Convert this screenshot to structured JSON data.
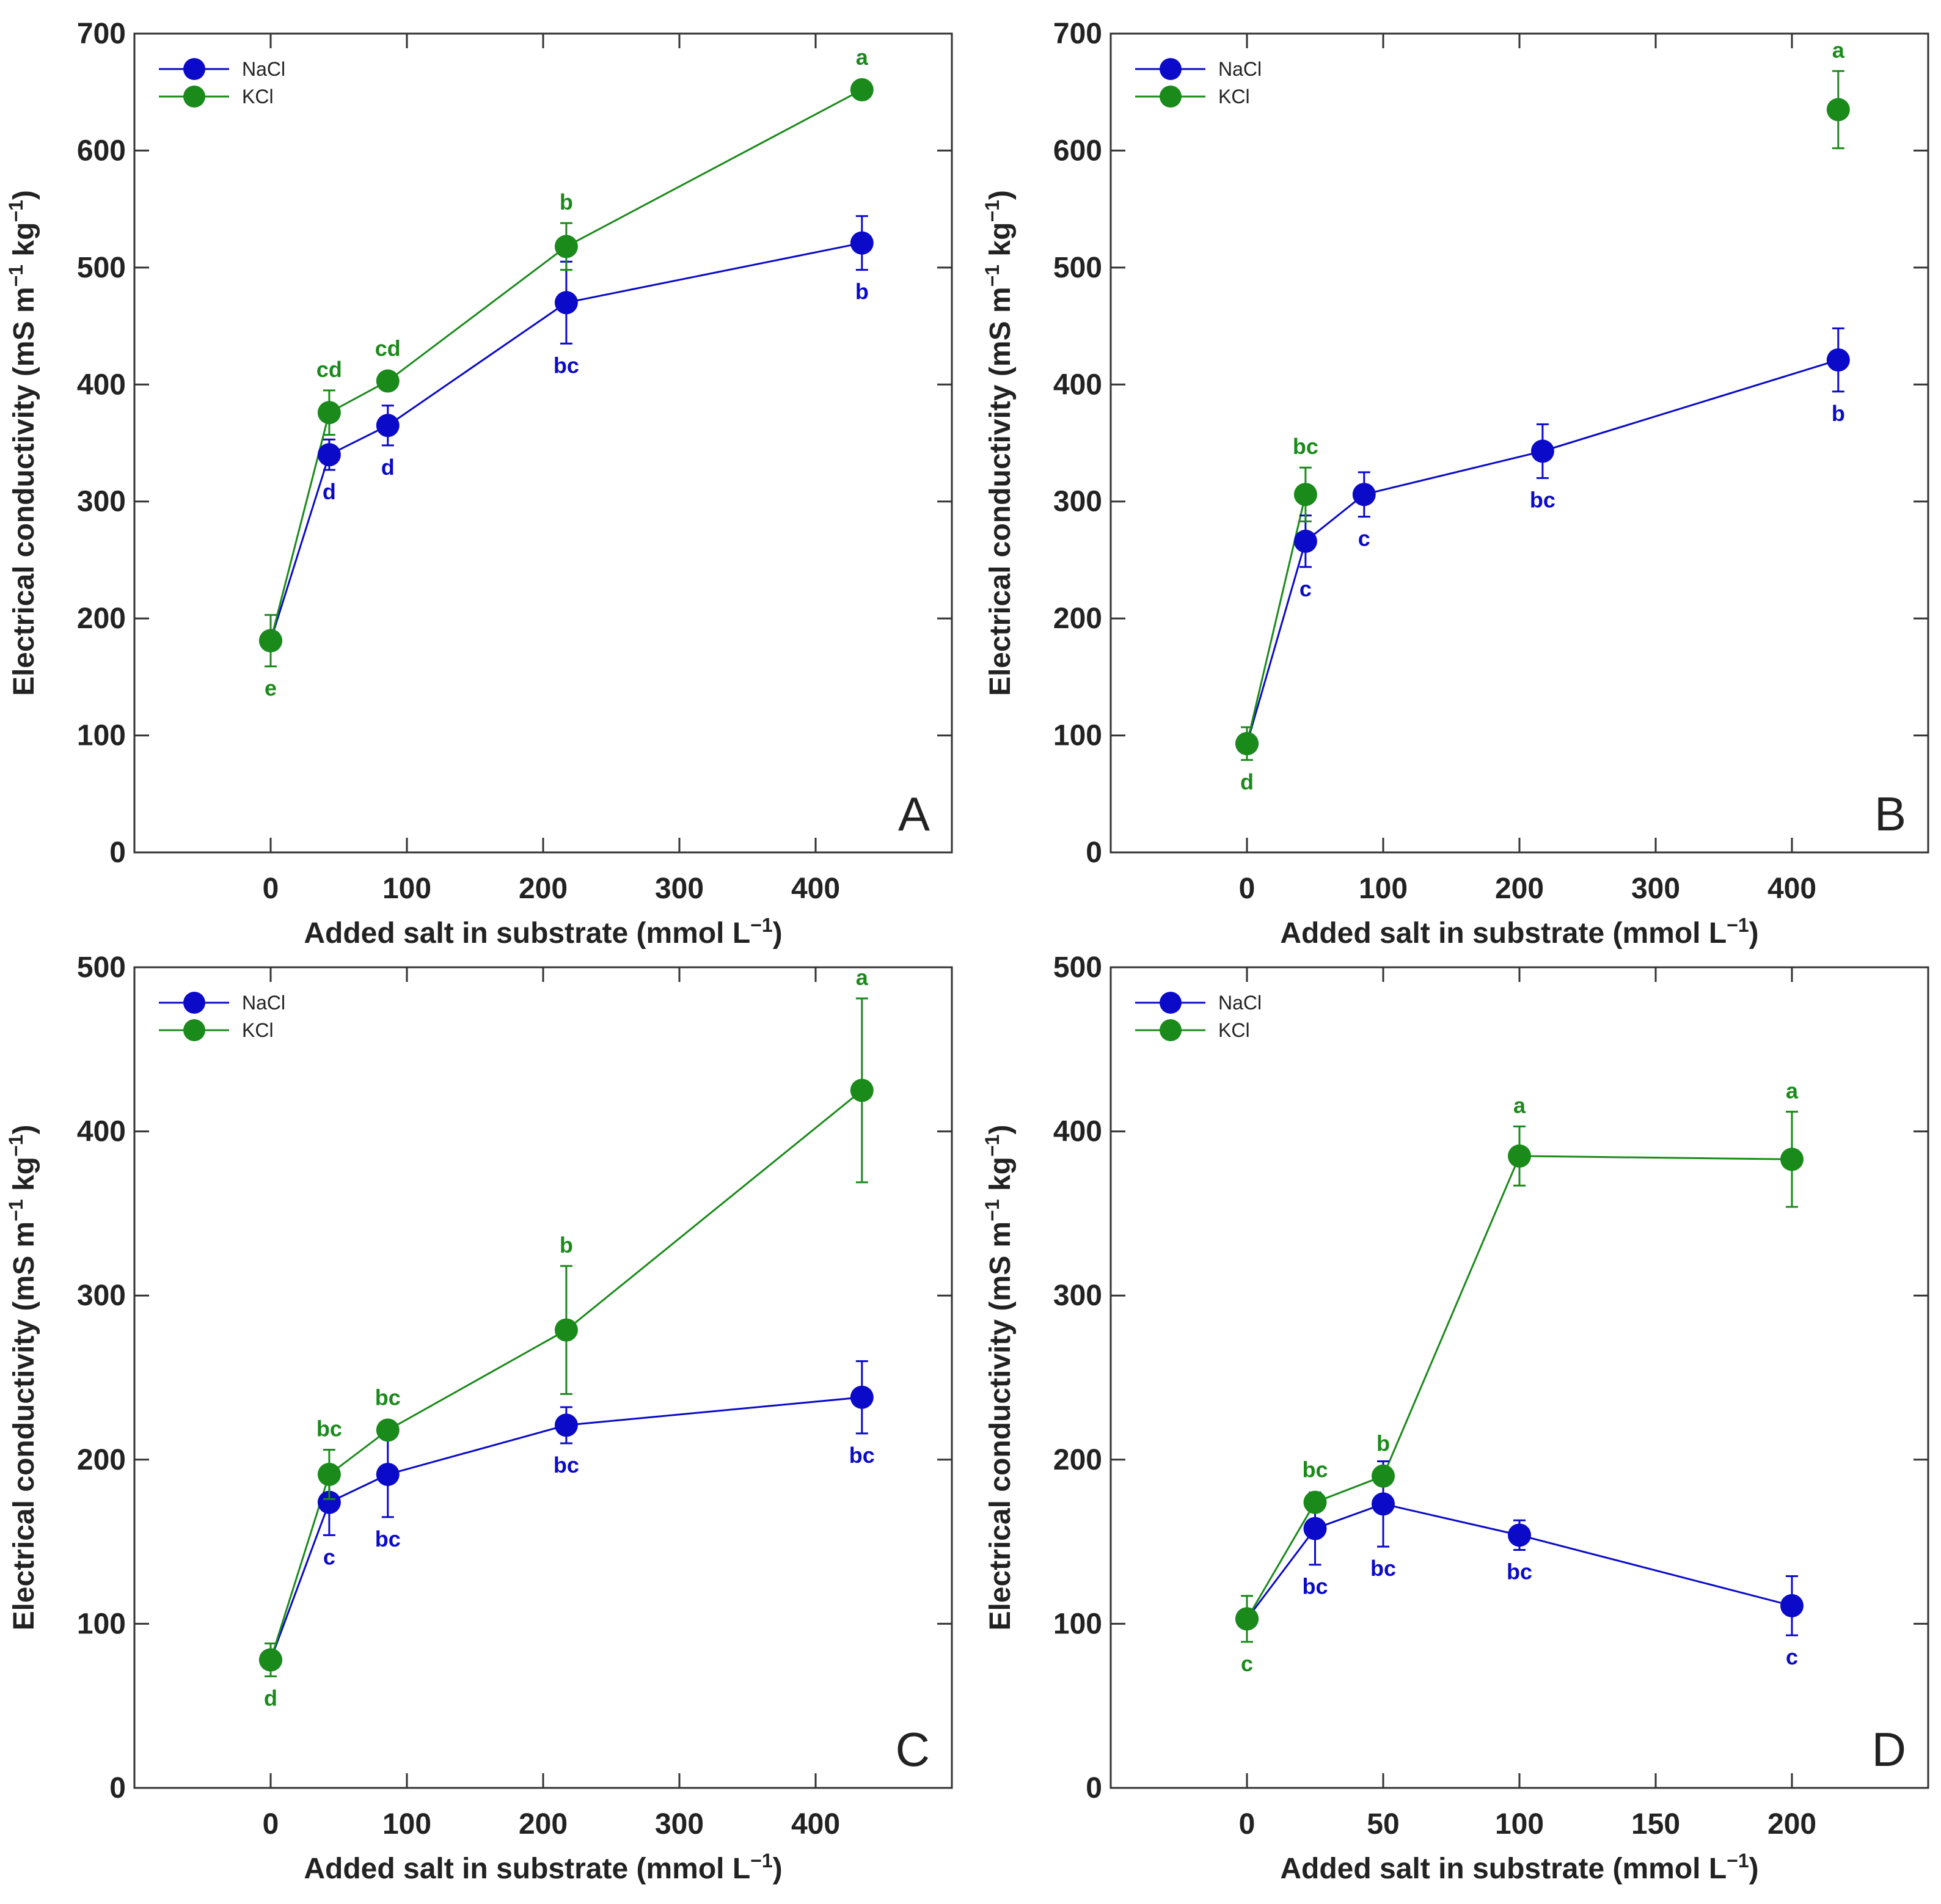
{
  "figure": {
    "colors": {
      "nacl": "#0a0ac8",
      "kcl": "#1a8a1a",
      "axis": "#333333"
    },
    "x_axis_label": "Added salt in substrate (mmol L",
    "x_axis_unit_exp": "−1",
    "x_axis_label_end": ")",
    "y_axis_label_main": "Electrical conductivity (mS m",
    "y_axis_label_mid": " kg",
    "y_axis_label_end": ")",
    "y_axis_unit_exp": "−1"
  },
  "chart_data": [
    {
      "panel": "A",
      "type": "line",
      "xlim": [
        -100,
        500
      ],
      "ylim": [
        0,
        700
      ],
      "xticks": [
        0,
        100,
        200,
        300,
        400
      ],
      "yticks": [
        0,
        100,
        200,
        300,
        400,
        500,
        600,
        700
      ],
      "legend": {
        "position": "top-left",
        "entries": [
          "NaCl",
          "KCl"
        ]
      },
      "series": [
        {
          "name": "NaCl",
          "color_key": "nacl",
          "points": [
            {
              "x": 0,
              "y": 181,
              "err": 0,
              "label": "",
              "label_pos": "below"
            },
            {
              "x": 43,
              "y": 340,
              "err": 13,
              "label": "d",
              "label_pos": "below"
            },
            {
              "x": 86,
              "y": 365,
              "err": 17,
              "label": "d",
              "label_pos": "below"
            },
            {
              "x": 217,
              "y": 470,
              "err": 35,
              "label": "bc",
              "label_pos": "below"
            },
            {
              "x": 434,
              "y": 521,
              "err": 23,
              "label": "b",
              "label_pos": "below"
            }
          ]
        },
        {
          "name": "KCl",
          "color_key": "kcl",
          "points": [
            {
              "x": 0,
              "y": 181,
              "err": 22,
              "label": "e",
              "label_pos": "below"
            },
            {
              "x": 43,
              "y": 376,
              "err": 19,
              "label": "cd",
              "label_pos": "above"
            },
            {
              "x": 86,
              "y": 403,
              "err": 0,
              "label": "cd",
              "label_pos": "above"
            },
            {
              "x": 217,
              "y": 518,
              "err": 20,
              "label": "b",
              "label_pos": "above"
            },
            {
              "x": 434,
              "y": 652,
              "err": 0,
              "label": "a",
              "label_pos": "above"
            }
          ]
        }
      ]
    },
    {
      "panel": "B",
      "type": "line",
      "xlim": [
        -100,
        500
      ],
      "ylim": [
        0,
        700
      ],
      "xticks": [
        0,
        100,
        200,
        300,
        400
      ],
      "yticks": [
        0,
        100,
        200,
        300,
        400,
        500,
        600,
        700
      ],
      "legend": {
        "position": "top-left",
        "entries": [
          "NaCl",
          "KCl"
        ]
      },
      "series": [
        {
          "name": "NaCl",
          "color_key": "nacl",
          "points": [
            {
              "x": 0,
              "y": 93,
              "err": 0,
              "label": "",
              "label_pos": "below"
            },
            {
              "x": 43,
              "y": 266,
              "err": 22,
              "label": "c",
              "label_pos": "below"
            },
            {
              "x": 86,
              "y": 306,
              "err": 19,
              "label": "c",
              "label_pos": "below"
            },
            {
              "x": 217,
              "y": 343,
              "err": 23,
              "label": "bc",
              "label_pos": "below"
            },
            {
              "x": 434,
              "y": 421,
              "err": 27,
              "label": "b",
              "label_pos": "below"
            }
          ]
        },
        {
          "name": "KCl",
          "color_key": "kcl",
          "points": [
            {
              "x": 0,
              "y": 93,
              "err": 14,
              "label": "d",
              "label_pos": "below"
            },
            {
              "x": 43,
              "y": 306,
              "err": 23,
              "label": "bc",
              "label_pos": "above"
            },
            {
              "x": 434,
              "y": 635,
              "err": 33,
              "label": "a",
              "label_pos": "above",
              "unconnected": true
            }
          ]
        }
      ]
    },
    {
      "panel": "C",
      "type": "line",
      "xlim": [
        -100,
        500
      ],
      "ylim": [
        0,
        500
      ],
      "xticks": [
        0,
        100,
        200,
        300,
        400
      ],
      "yticks": [
        0,
        100,
        200,
        300,
        400,
        500
      ],
      "legend": {
        "position": "top-left",
        "entries": [
          "NaCl",
          "KCl"
        ]
      },
      "series": [
        {
          "name": "NaCl",
          "color_key": "nacl",
          "points": [
            {
              "x": 0,
              "y": 78,
              "err": 0,
              "label": "",
              "label_pos": "below"
            },
            {
              "x": 43,
              "y": 174,
              "err": 20,
              "label": "c",
              "label_pos": "below"
            },
            {
              "x": 86,
              "y": 191,
              "err": 26,
              "label": "bc",
              "label_pos": "below"
            },
            {
              "x": 217,
              "y": 221,
              "err": 11,
              "label": "bc",
              "label_pos": "below"
            },
            {
              "x": 434,
              "y": 238,
              "err": 22,
              "label": "bc",
              "label_pos": "below"
            }
          ]
        },
        {
          "name": "KCl",
          "color_key": "kcl",
          "points": [
            {
              "x": 0,
              "y": 78,
              "err": 10,
              "label": "d",
              "label_pos": "below"
            },
            {
              "x": 43,
              "y": 191,
              "err": 15,
              "label": "bc",
              "label_pos": "above"
            },
            {
              "x": 86,
              "y": 218,
              "err": 0,
              "label": "bc",
              "label_pos": "above"
            },
            {
              "x": 217,
              "y": 279,
              "err": 39,
              "label": "b",
              "label_pos": "above"
            },
            {
              "x": 434,
              "y": 425,
              "err": 56,
              "label": "a",
              "label_pos": "above"
            }
          ]
        }
      ]
    },
    {
      "panel": "D",
      "type": "line",
      "xlim": [
        -50,
        250
      ],
      "ylim": [
        0,
        500
      ],
      "xticks": [
        0,
        50,
        100,
        150,
        200
      ],
      "yticks": [
        0,
        100,
        200,
        300,
        400,
        500
      ],
      "legend": {
        "position": "top-left",
        "entries": [
          "NaCl",
          "KCl"
        ]
      },
      "series": [
        {
          "name": "NaCl",
          "color_key": "nacl",
          "points": [
            {
              "x": 0,
              "y": 103,
              "err": 0,
              "label": "",
              "label_pos": "below"
            },
            {
              "x": 25,
              "y": 158,
              "err": 22,
              "label": "bc",
              "label_pos": "below"
            },
            {
              "x": 50,
              "y": 173,
              "err": 26,
              "label": "bc",
              "label_pos": "below"
            },
            {
              "x": 100,
              "y": 154,
              "err": 9,
              "label": "bc",
              "label_pos": "below"
            },
            {
              "x": 200,
              "y": 111,
              "err": 18,
              "label": "c",
              "label_pos": "below"
            }
          ]
        },
        {
          "name": "KCl",
          "color_key": "kcl",
          "points": [
            {
              "x": 0,
              "y": 103,
              "err": 14,
              "label": "c",
              "label_pos": "below"
            },
            {
              "x": 25,
              "y": 174,
              "err": 0,
              "label": "bc",
              "label_pos": "above"
            },
            {
              "x": 50,
              "y": 190,
              "err": 0,
              "label": "b",
              "label_pos": "above"
            },
            {
              "x": 100,
              "y": 385,
              "err": 18,
              "label": "a",
              "label_pos": "above"
            },
            {
              "x": 200,
              "y": 383,
              "err": 29,
              "label": "a",
              "label_pos": "above"
            }
          ]
        }
      ]
    }
  ]
}
